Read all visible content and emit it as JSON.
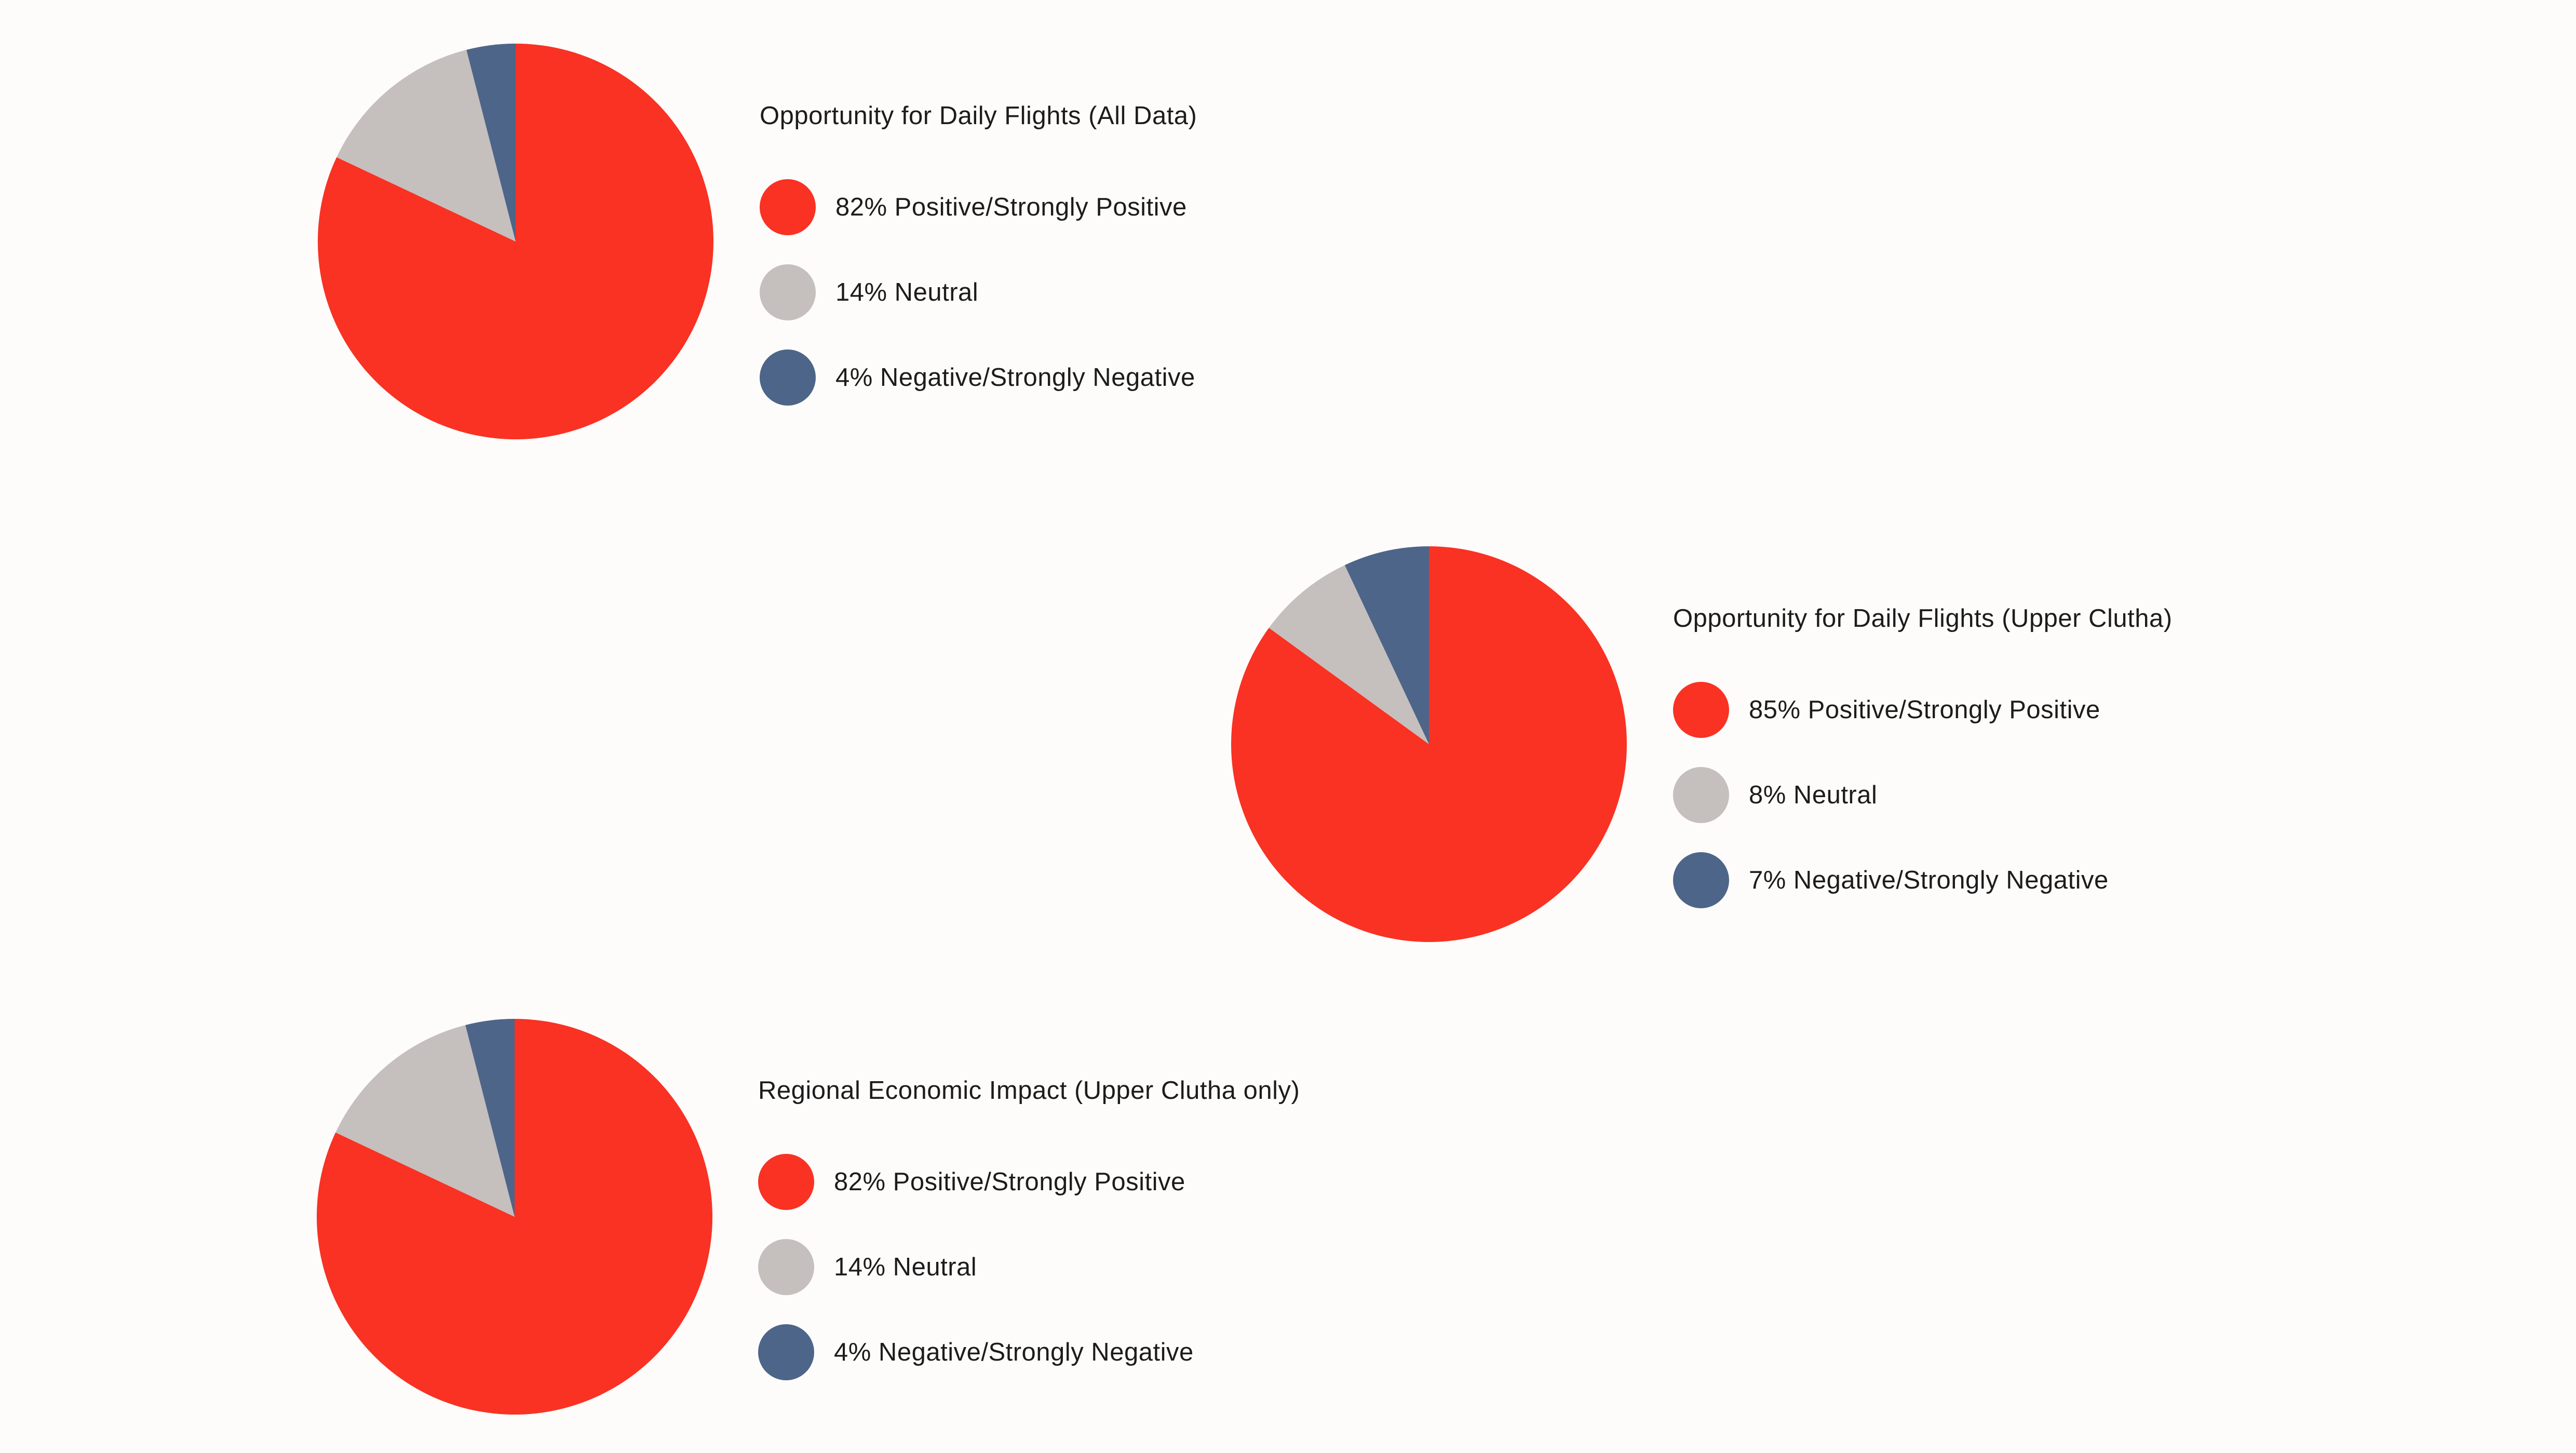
{
  "colors": {
    "positive": "#f93223",
    "neutral": "#c5bfbe",
    "negative": "#4d6588",
    "background": "#fdfcfb",
    "text": "#1c1c1c"
  },
  "chart_data": [
    {
      "type": "pie",
      "title": "Opportunity for Daily Flights  (All Data)",
      "series": [
        {
          "name": "82% Positive/Strongly Positive",
          "value": 82,
          "color": "#f93223"
        },
        {
          "name": "14% Neutral",
          "value": 14,
          "color": "#c5bfbe"
        },
        {
          "name": "4% Negative/Strongly Negative",
          "value": 4,
          "color": "#4d6588"
        }
      ],
      "legend_placement": "right"
    },
    {
      "type": "pie",
      "title": "Opportunity for Daily Flights  (Upper Clutha)",
      "series": [
        {
          "name": "85% Positive/Strongly Positive",
          "value": 85,
          "color": "#f93223"
        },
        {
          "name": "8% Neutral",
          "value": 8,
          "color": "#c5bfbe"
        },
        {
          "name": "7% Negative/Strongly Negative",
          "value": 7,
          "color": "#4d6588"
        }
      ],
      "legend_placement": "right"
    },
    {
      "type": "pie",
      "title": "Regional Economic Impact  (Upper Clutha only)",
      "series": [
        {
          "name": "82% Positive/Strongly Positive",
          "value": 82,
          "color": "#f93223"
        },
        {
          "name": "14% Neutral",
          "value": 14,
          "color": "#c5bfbe"
        },
        {
          "name": "4% Negative/Strongly Negative",
          "value": 4,
          "color": "#4d6588"
        }
      ],
      "legend_placement": "right"
    }
  ]
}
